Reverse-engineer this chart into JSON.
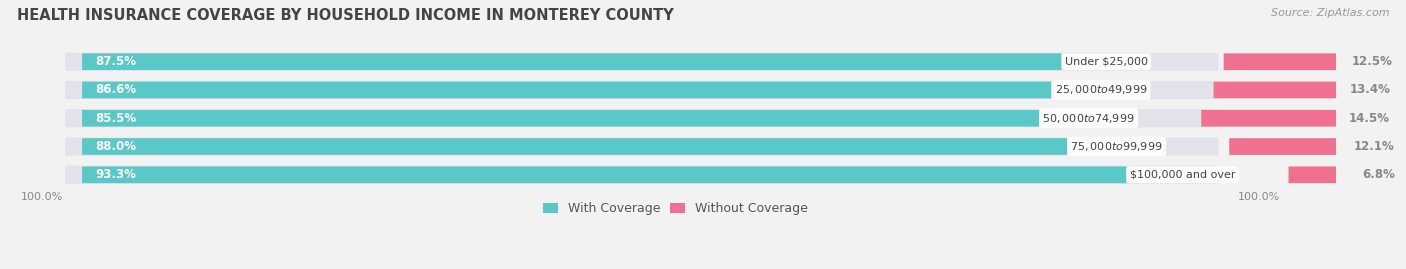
{
  "title": "HEALTH INSURANCE COVERAGE BY HOUSEHOLD INCOME IN MONTEREY COUNTY",
  "source": "Source: ZipAtlas.com",
  "categories": [
    "Under $25,000",
    "$25,000 to $49,999",
    "$50,000 to $74,999",
    "$75,000 to $99,999",
    "$100,000 and over"
  ],
  "with_coverage": [
    87.5,
    86.6,
    85.5,
    88.0,
    93.3
  ],
  "without_coverage": [
    12.5,
    13.4,
    14.5,
    12.1,
    6.8
  ],
  "color_with": "#5bc8c8",
  "color_without": "#f07090",
  "bg_color": "#f2f2f2",
  "bar_bg_color": "#e2e2ea",
  "title_fontsize": 10.5,
  "source_fontsize": 8,
  "label_fontsize": 8.5,
  "category_fontsize": 8,
  "legend_fontsize": 9,
  "axis_label_fontsize": 8
}
